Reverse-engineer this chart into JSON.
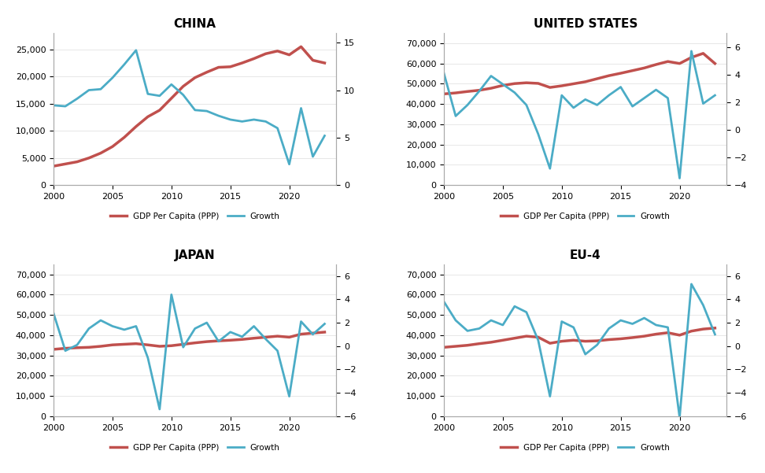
{
  "years": [
    2000,
    2001,
    2002,
    2003,
    2004,
    2005,
    2006,
    2007,
    2008,
    2009,
    2010,
    2011,
    2012,
    2013,
    2014,
    2015,
    2016,
    2017,
    2018,
    2019,
    2020,
    2021,
    2022,
    2023
  ],
  "china": {
    "title": "CHINA",
    "gdp": [
      3500,
      3900,
      4300,
      5000,
      5900,
      7100,
      8800,
      10800,
      12600,
      13800,
      16000,
      18200,
      19800,
      20800,
      21700,
      21800,
      22500,
      23300,
      24200,
      24700,
      24000,
      25500,
      23000,
      22500
    ],
    "growth": [
      8.4,
      8.3,
      9.1,
      10.0,
      10.1,
      11.3,
      12.7,
      14.2,
      9.6,
      9.4,
      10.6,
      9.5,
      7.9,
      7.8,
      7.3,
      6.9,
      6.7,
      6.9,
      6.7,
      6.0,
      2.2,
      8.1,
      3.0,
      5.2
    ],
    "gdp_ylim": [
      0,
      28000
    ],
    "growth_ylim": [
      0,
      16
    ],
    "gdp_yticks": [
      0,
      5000,
      10000,
      15000,
      20000,
      25000
    ],
    "growth_yticks": [
      0,
      5,
      10,
      15
    ]
  },
  "us": {
    "title": "UNITED STATES",
    "gdp": [
      45000,
      45500,
      46200,
      46800,
      47800,
      49200,
      50100,
      50500,
      50200,
      48200,
      49000,
      50000,
      51000,
      52500,
      54000,
      55200,
      56500,
      57800,
      59500,
      61000,
      60000,
      63000,
      65000,
      60000
    ],
    "growth": [
      4.1,
      1.0,
      1.8,
      2.8,
      3.9,
      3.3,
      2.7,
      1.8,
      -0.3,
      -2.8,
      2.5,
      1.6,
      2.2,
      1.8,
      2.5,
      3.1,
      1.7,
      2.3,
      2.9,
      2.3,
      -3.5,
      5.7,
      1.9,
      2.5
    ],
    "gdp_ylim": [
      0,
      75000
    ],
    "growth_ylim": [
      -4,
      7
    ],
    "gdp_yticks": [
      0,
      10000,
      20000,
      30000,
      40000,
      50000,
      60000,
      70000
    ],
    "growth_yticks": [
      -4,
      -2,
      0,
      2,
      4,
      6
    ]
  },
  "japan": {
    "title": "JAPAN",
    "gdp": [
      33000,
      33500,
      33800,
      34000,
      34500,
      35200,
      35500,
      35800,
      35200,
      34500,
      34800,
      35500,
      36200,
      36800,
      37200,
      37500,
      37900,
      38500,
      39000,
      39500,
      39000,
      40500,
      41000,
      41500
    ],
    "growth": [
      2.8,
      -0.4,
      0.1,
      1.5,
      2.2,
      1.7,
      1.4,
      1.7,
      -1.0,
      -5.4,
      4.4,
      -0.1,
      1.5,
      2.0,
      0.4,
      1.2,
      0.8,
      1.7,
      0.6,
      -0.4,
      -4.3,
      2.1,
      1.0,
      1.9
    ],
    "gdp_ylim": [
      0,
      75000
    ],
    "growth_ylim": [
      -6,
      7
    ],
    "gdp_yticks": [
      0,
      10000,
      20000,
      30000,
      40000,
      50000,
      60000,
      70000
    ],
    "growth_yticks": [
      -6,
      -4,
      -2,
      0,
      2,
      4,
      6
    ]
  },
  "eu4": {
    "title": "EU-4",
    "gdp": [
      34000,
      34500,
      35000,
      35800,
      36500,
      37500,
      38500,
      39500,
      39000,
      36000,
      37000,
      37500,
      37000,
      37200,
      37800,
      38200,
      38800,
      39500,
      40500,
      41200,
      40000,
      42000,
      43000,
      43500
    ],
    "growth": [
      3.8,
      2.2,
      1.3,
      1.5,
      2.2,
      1.8,
      3.4,
      2.9,
      0.5,
      -4.3,
      2.1,
      1.6,
      -0.7,
      0.1,
      1.5,
      2.2,
      1.9,
      2.4,
      1.8,
      1.6,
      -6.1,
      5.3,
      3.5,
      1.0
    ],
    "gdp_ylim": [
      0,
      75000
    ],
    "growth_ylim": [
      -6,
      7
    ],
    "gdp_yticks": [
      0,
      10000,
      20000,
      30000,
      40000,
      50000,
      60000,
      70000
    ],
    "growth_yticks": [
      -6,
      -4,
      -2,
      0,
      2,
      4,
      6
    ]
  },
  "gdp_color": "#C0504D",
  "growth_color": "#4BACC6",
  "background_color": "#FFFFFF",
  "legend_gdp": "GDP Per Capita (PPP)",
  "legend_growth": "Growth",
  "x_ticks": [
    2000,
    2005,
    2010,
    2015,
    2020
  ]
}
